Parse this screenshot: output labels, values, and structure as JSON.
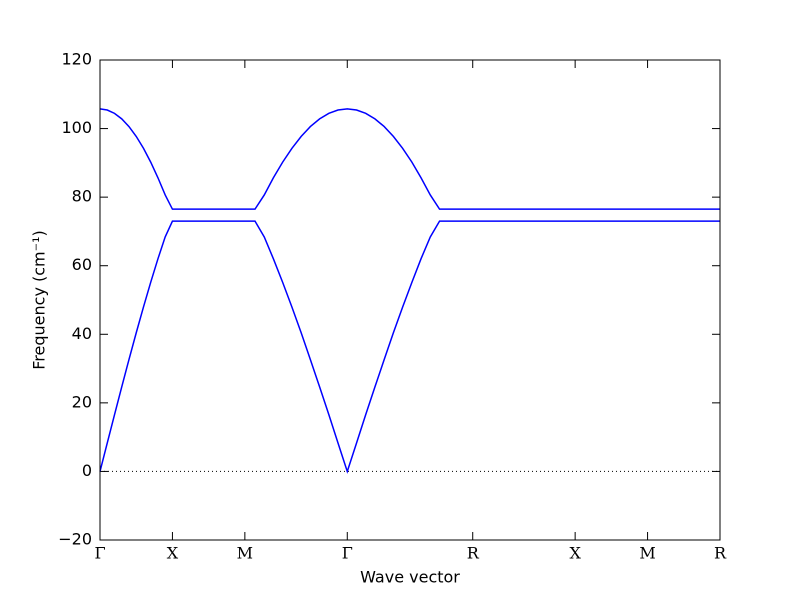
{
  "chart_data": {
    "type": "line",
    "xlabel": "Wave vector",
    "ylabel": "Frequency (cm⁻¹)",
    "x": [
      0,
      0.05,
      0.1,
      0.15,
      0.2,
      0.25,
      0.3,
      0.35,
      0.4,
      0.45,
      0.5,
      1.0,
      1.07,
      1.134,
      1.197,
      1.261,
      1.325,
      1.389,
      1.452,
      1.516,
      1.58,
      1.643,
      1.707,
      1.771,
      1.834,
      1.898,
      1.962,
      2.025,
      2.089,
      2.153,
      2.216,
      2.28,
      2.344,
      2.573,
      3.28,
      3.78,
      4.28
    ],
    "series": [
      {
        "color": "#0000ff",
        "values": [
          0,
          8.29,
          16.52,
          24.65,
          32.63,
          40.41,
          47.93,
          55.15,
          62.01,
          68.39,
          72.99,
          72.99,
          72.99,
          68.39,
          62.01,
          55.15,
          47.93,
          40.41,
          32.63,
          24.65,
          16.52,
          8.29,
          0,
          8.29,
          16.52,
          24.65,
          32.63,
          40.41,
          47.93,
          55.15,
          62.01,
          68.39,
          72.99,
          72.99,
          72.99,
          72.99,
          72.99
        ]
      },
      {
        "color": "#0000ff",
        "values": [
          105.74,
          105.41,
          104.44,
          102.83,
          100.58,
          97.71,
          94.25,
          90.22,
          85.65,
          80.64,
          76.49,
          76.49,
          76.49,
          80.64,
          85.65,
          90.22,
          94.25,
          97.71,
          100.58,
          102.83,
          104.44,
          105.41,
          105.74,
          105.41,
          104.44,
          102.83,
          100.58,
          97.71,
          94.25,
          90.22,
          85.65,
          80.64,
          76.49,
          76.49,
          76.49,
          76.49,
          76.49
        ]
      }
    ],
    "xlim": [
      0,
      4.28
    ],
    "xticks": [
      {
        "value": 0,
        "label": "Γ"
      },
      {
        "value": 0.5,
        "label": "X"
      },
      {
        "value": 1.0,
        "label": "M"
      },
      {
        "value": 1.707,
        "label": "Γ"
      },
      {
        "value": 2.573,
        "label": "R"
      },
      {
        "value": 3.28,
        "label": "X"
      },
      {
        "value": 3.78,
        "label": "M"
      },
      {
        "value": 4.28,
        "label": "R"
      }
    ],
    "ylim": [
      -20,
      120
    ],
    "yticks": [
      {
        "value": -20,
        "label": "−20"
      },
      0,
      20,
      40,
      60,
      80,
      100,
      120
    ],
    "hline": 0
  }
}
